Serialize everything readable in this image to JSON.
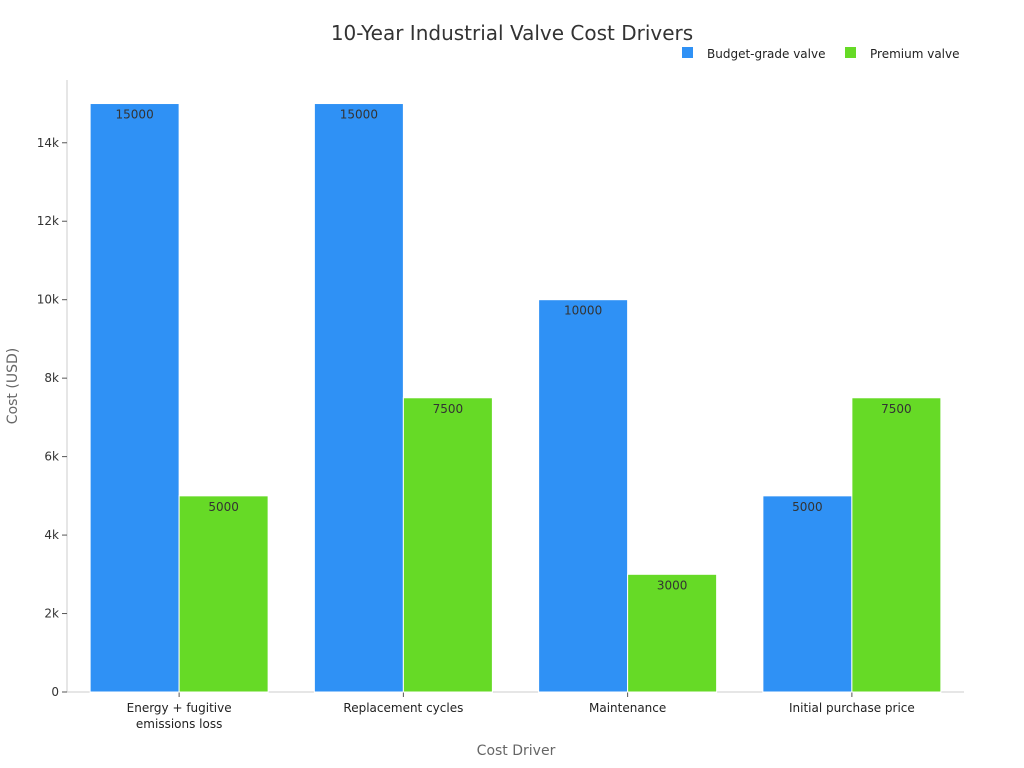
{
  "chart_data": {
    "type": "bar",
    "title": "10-Year Industrial Valve Cost Drivers",
    "xlabel": "Cost Driver",
    "ylabel": "Cost (USD)",
    "categories": [
      [
        "Energy + fugitive",
        "emissions loss"
      ],
      [
        "Replacement cycles"
      ],
      [
        "Maintenance"
      ],
      [
        "Initial purchase price"
      ]
    ],
    "series": [
      {
        "name": "Budget-grade valve",
        "color": "#2f91f5",
        "values": [
          15000,
          15000,
          10000,
          5000
        ]
      },
      {
        "name": "Premium valve",
        "color": "#66da26",
        "values": [
          5000,
          7500,
          3000,
          7500
        ]
      }
    ],
    "ylim": [
      0,
      15600
    ],
    "yticks": [
      {
        "value": 0,
        "label": "0"
      },
      {
        "value": 2000,
        "label": "2k"
      },
      {
        "value": 4000,
        "label": "4k"
      },
      {
        "value": 6000,
        "label": "6k"
      },
      {
        "value": 8000,
        "label": "8k"
      },
      {
        "value": 10000,
        "label": "10k"
      },
      {
        "value": 12000,
        "label": "12k"
      },
      {
        "value": 14000,
        "label": "14k"
      }
    ],
    "legend_position": "top-right",
    "grid": false,
    "data_labels": true
  }
}
